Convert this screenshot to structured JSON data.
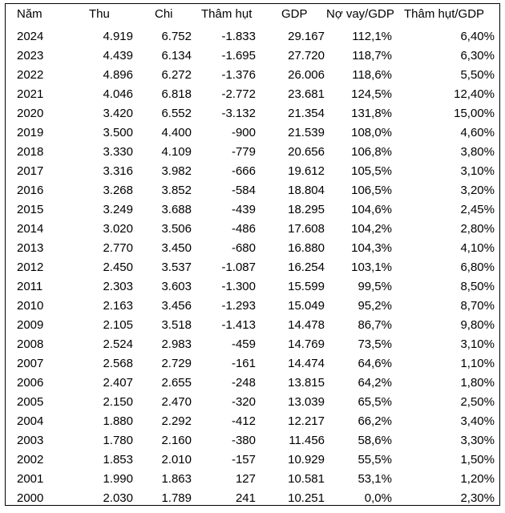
{
  "headers": [
    "Năm",
    "Thu",
    "Chi",
    "Thâm hụt",
    "GDP",
    "Nợ vay/GDP",
    "Thâm hụt/GDP"
  ],
  "rows": [
    [
      "2024",
      "4.919",
      "6.752",
      "-1.833",
      "29.167",
      "112,1%",
      "6,40%"
    ],
    [
      "2023",
      "4.439",
      "6.134",
      "-1.695",
      "27.720",
      "118,7%",
      "6,30%"
    ],
    [
      "2022",
      "4.896",
      "6.272",
      "-1.376",
      "26.006",
      "118,6%",
      "5,50%"
    ],
    [
      "2021",
      "4.046",
      "6.818",
      "-2.772",
      "23.681",
      "124,5%",
      "12,40%"
    ],
    [
      "2020",
      "3.420",
      "6.552",
      "-3.132",
      "21.354",
      "131,8%",
      "15,00%"
    ],
    [
      "2019",
      "3.500",
      "4.400",
      "-900",
      "21.539",
      "108,0%",
      "4,60%"
    ],
    [
      "2018",
      "3.330",
      "4.109",
      "-779",
      "20.656",
      "106,8%",
      "3,80%"
    ],
    [
      "2017",
      "3.316",
      "3.982",
      "-666",
      "19.612",
      "105,5%",
      "3,10%"
    ],
    [
      "2016",
      "3.268",
      "3.852",
      "-584",
      "18.804",
      "106,5%",
      "3,20%"
    ],
    [
      "2015",
      "3.249",
      "3.688",
      "-439",
      "18.295",
      "104,6%",
      "2,45%"
    ],
    [
      "2014",
      "3.020",
      "3.506",
      "-486",
      "17.608",
      "104,2%",
      "2,80%"
    ],
    [
      "2013",
      "2.770",
      "3.450",
      "-680",
      "16.880",
      "104,3%",
      "4,10%"
    ],
    [
      "2012",
      "2.450",
      "3.537",
      "-1.087",
      "16.254",
      "103,1%",
      "6,80%"
    ],
    [
      "2011",
      "2.303",
      "3.603",
      "-1.300",
      "15.599",
      "99,5%",
      "8,50%"
    ],
    [
      "2010",
      "2.163",
      "3.456",
      "-1.293",
      "15.049",
      "95,2%",
      "8,70%"
    ],
    [
      "2009",
      "2.105",
      "3.518",
      "-1.413",
      "14.478",
      "86,7%",
      "9,80%"
    ],
    [
      "2008",
      "2.524",
      "2.983",
      "-459",
      "14.769",
      "73,5%",
      "3,10%"
    ],
    [
      "2007",
      "2.568",
      "2.729",
      "-161",
      "14.474",
      "64,6%",
      "1,10%"
    ],
    [
      "2006",
      "2.407",
      "2.655",
      "-248",
      "13.815",
      "64,2%",
      "1,80%"
    ],
    [
      "2005",
      "2.150",
      "2.470",
      "-320",
      "13.039",
      "65,5%",
      "2,50%"
    ],
    [
      "2004",
      "1.880",
      "2.292",
      "-412",
      "12.217",
      "66,2%",
      "3,40%"
    ],
    [
      "2003",
      "1.780",
      "2.160",
      "-380",
      "11.456",
      "58,6%",
      "3,30%"
    ],
    [
      "2002",
      "1.853",
      "2.010",
      "-157",
      "10.929",
      "55,5%",
      "1,50%"
    ],
    [
      "2001",
      "1.990",
      "1.863",
      "127",
      "10.581",
      "53,1%",
      "1,20%"
    ],
    [
      "2000",
      "2.030",
      "1.789",
      "241",
      "10.251",
      "0,0%",
      "2,30%"
    ]
  ]
}
